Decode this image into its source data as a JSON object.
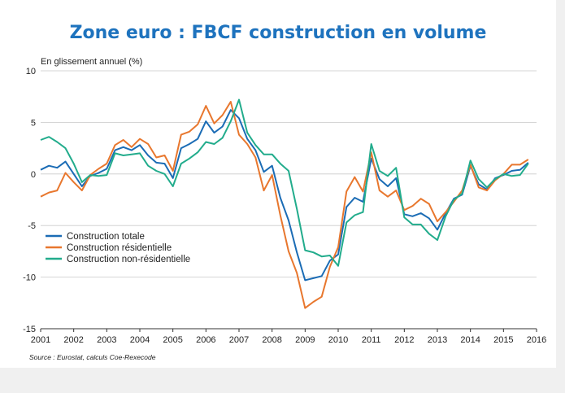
{
  "title": "Zone euro : FBCF construction en volume",
  "source": "Source : Eurostat, calculs Coe-Rexecode",
  "chart_data": {
    "type": "line",
    "title": "Zone euro : FBCF construction en volume",
    "ylabel": "En glissement annuel (%)",
    "xlabel": "",
    "xlim": [
      2001,
      2016
    ],
    "ylim": [
      -15,
      10
    ],
    "yticks": [
      10,
      5,
      0,
      -5,
      -10,
      -15
    ],
    "xticks": [
      "2001",
      "2002",
      "2003",
      "2004",
      "2005",
      "2006",
      "2007",
      "2008",
      "2009",
      "2010",
      "2011",
      "2012",
      "2013",
      "2014",
      "2015",
      "2016"
    ],
    "grid": "horizontal",
    "legend_position": "lower-left",
    "x": [
      2001.0,
      2001.25,
      2001.5,
      2001.75,
      2002.0,
      2002.25,
      2002.5,
      2002.75,
      2003.0,
      2003.25,
      2003.5,
      2003.75,
      2004.0,
      2004.25,
      2004.5,
      2004.75,
      2005.0,
      2005.25,
      2005.5,
      2005.75,
      2006.0,
      2006.25,
      2006.5,
      2006.75,
      2007.0,
      2007.25,
      2007.5,
      2007.75,
      2008.0,
      2008.25,
      2008.5,
      2008.75,
      2009.0,
      2009.25,
      2009.5,
      2009.75,
      2010.0,
      2010.25,
      2010.5,
      2010.75,
      2011.0,
      2011.25,
      2011.5,
      2011.75,
      2012.0,
      2012.25,
      2012.5,
      2012.75,
      2013.0,
      2013.25,
      2013.5,
      2013.75,
      2014.0,
      2014.25,
      2014.5,
      2014.75,
      2015.0,
      2015.25,
      2015.5,
      2015.75
    ],
    "series": [
      {
        "name": "Construction totale",
        "color": "#1b6cb5",
        "values": [
          0.4,
          0.8,
          0.6,
          1.2,
          0.0,
          -1.2,
          -0.2,
          0.1,
          0.5,
          2.3,
          2.6,
          2.3,
          2.8,
          1.8,
          1.1,
          1.0,
          -0.4,
          2.5,
          2.9,
          3.4,
          5.1,
          4.0,
          4.6,
          6.2,
          5.4,
          3.4,
          2.3,
          0.2,
          0.8,
          -2.3,
          -4.5,
          -7.6,
          -10.3,
          -10.1,
          -9.9,
          -8.4,
          -7.8,
          -3.2,
          -2.3,
          -2.7,
          1.5,
          -0.5,
          -1.2,
          -0.4,
          -3.9,
          -4.1,
          -3.8,
          -4.3,
          -5.4,
          -3.8,
          -2.4,
          -2.0,
          0.8,
          -1.0,
          -1.5,
          -0.4,
          -0.1,
          0.3,
          0.4,
          1.1
        ]
      },
      {
        "name": "Construction résidentielle",
        "color": "#e8772e",
        "values": [
          -2.2,
          -1.8,
          -1.6,
          0.1,
          -0.8,
          -1.6,
          -0.1,
          0.5,
          1.0,
          2.8,
          3.3,
          2.6,
          3.4,
          2.9,
          1.6,
          1.8,
          0.3,
          3.8,
          4.1,
          4.8,
          6.6,
          4.9,
          5.7,
          7.0,
          3.8,
          2.9,
          1.6,
          -1.6,
          -0.1,
          -4.0,
          -7.5,
          -9.6,
          -13.0,
          -12.4,
          -11.9,
          -9.0,
          -7.1,
          -1.7,
          -0.3,
          -1.7,
          2.1,
          -1.6,
          -2.2,
          -1.6,
          -3.5,
          -3.1,
          -2.4,
          -2.9,
          -4.6,
          -3.7,
          -2.7,
          -1.6,
          0.9,
          -1.3,
          -1.6,
          -0.6,
          0.0,
          0.9,
          0.9,
          1.4
        ]
      },
      {
        "name": "Construction non-résidentielle",
        "color": "#22ac8c",
        "values": [
          3.3,
          3.6,
          3.1,
          2.5,
          1.0,
          -0.8,
          -0.1,
          -0.2,
          -0.1,
          2.0,
          1.8,
          1.9,
          2.0,
          0.8,
          0.3,
          0.0,
          -1.2,
          1.0,
          1.5,
          2.1,
          3.1,
          2.9,
          3.5,
          5.1,
          7.2,
          4.0,
          2.8,
          1.9,
          1.9,
          1.0,
          0.3,
          -3.4,
          -7.4,
          -7.6,
          -8.0,
          -7.9,
          -8.9,
          -4.7,
          -4.0,
          -3.7,
          2.9,
          0.3,
          -0.2,
          0.6,
          -4.2,
          -4.9,
          -4.9,
          -5.8,
          -6.4,
          -4.1,
          -2.5,
          -1.9,
          1.3,
          -0.5,
          -1.3,
          -0.5,
          0.0,
          -0.2,
          -0.1,
          1.0
        ]
      }
    ]
  }
}
